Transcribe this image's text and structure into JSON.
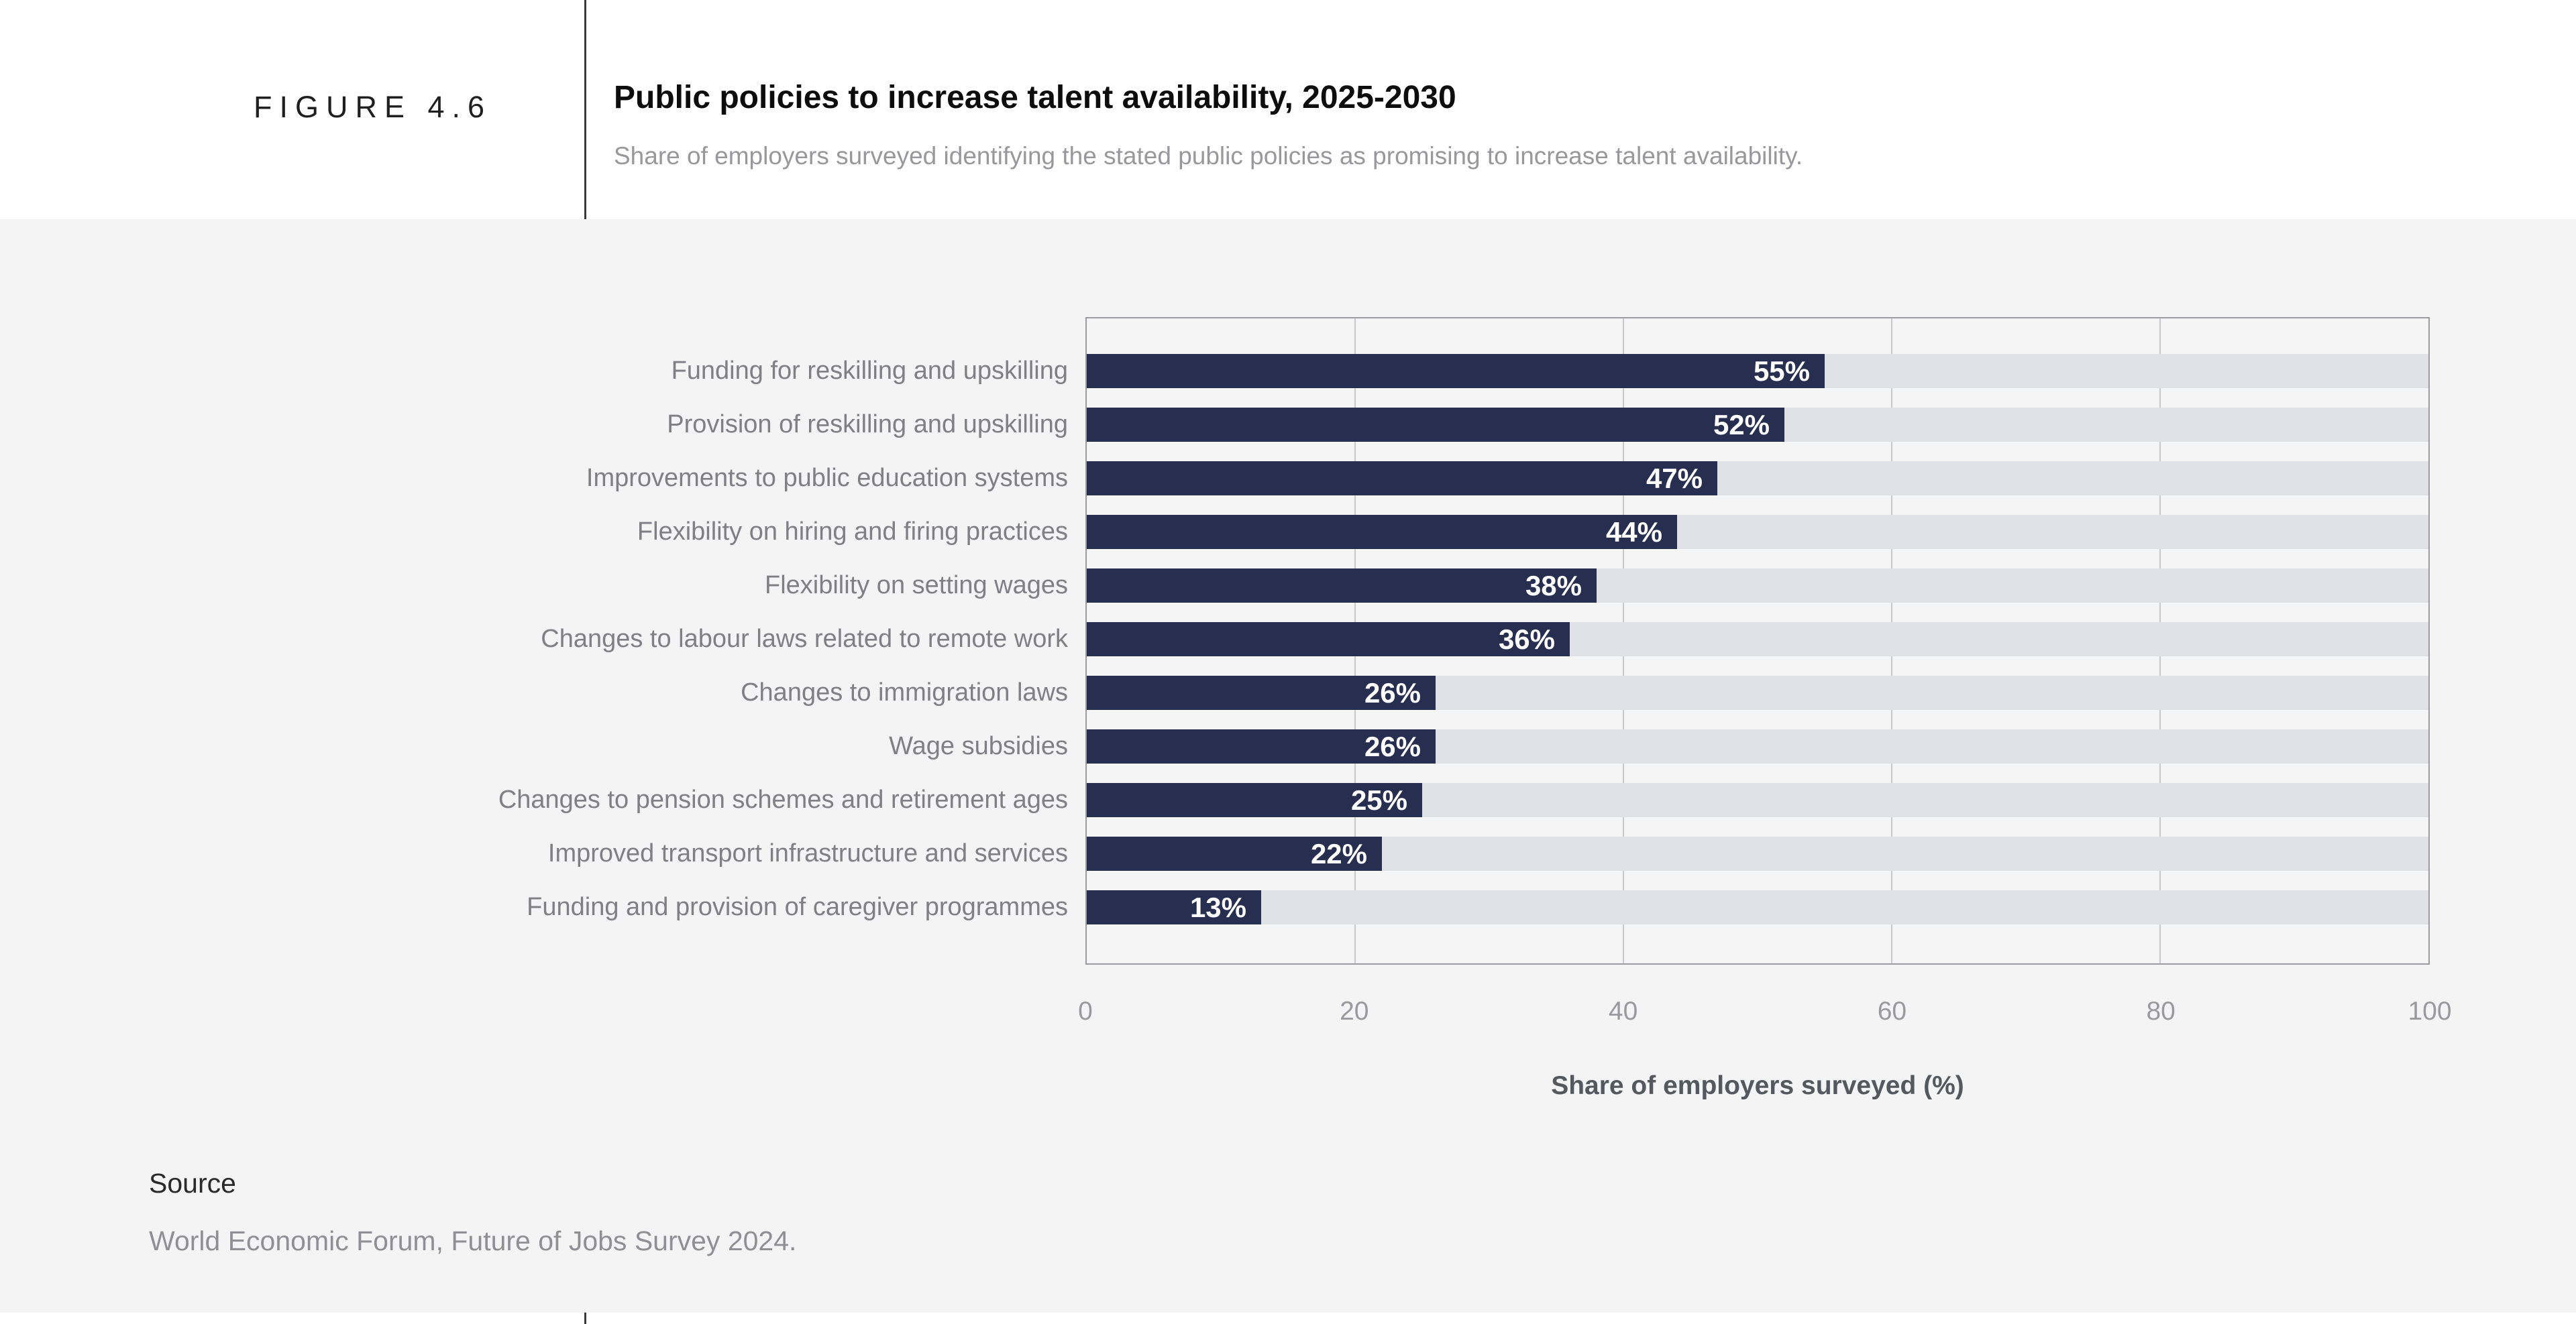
{
  "header": {
    "figure_label": "FIGURE 4.6",
    "title": "Public policies to increase talent availability, 2025-2030",
    "subtitle": "Share of employers surveyed identifying the stated public policies as promising to increase talent availability."
  },
  "chart_data": {
    "type": "bar",
    "orientation": "horizontal",
    "categories": [
      "Funding for reskilling and upskilling",
      "Provision of reskilling and upskilling",
      "Improvements to public education systems",
      "Flexibility on hiring and firing practices",
      "Flexibility on setting wages",
      "Changes to labour laws related to remote work",
      "Changes to immigration laws",
      "Wage subsidies",
      "Changes to pension schemes and retirement ages",
      "Improved transport infrastructure and services",
      "Funding and provision of caregiver programmes"
    ],
    "values": [
      55,
      52,
      47,
      44,
      38,
      36,
      26,
      26,
      25,
      22,
      13
    ],
    "value_labels": [
      "55%",
      "52%",
      "47%",
      "44%",
      "38%",
      "36%",
      "26%",
      "26%",
      "25%",
      "22%",
      "13%"
    ],
    "title": "Public policies to increase talent availability, 2025-2030",
    "xlabel": "Share of employers surveyed (%)",
    "ylabel": "",
    "xlim": [
      0,
      100
    ],
    "ticks": [
      0,
      20,
      40,
      60,
      80,
      100
    ],
    "grid": "vertical",
    "legend": "none"
  },
  "source": {
    "label": "Source",
    "text": "World Economic Forum, Future of Jobs Survey 2024."
  },
  "colors": {
    "bar": "#272e4f",
    "track": "#e0e1e6",
    "plot-bg": "#f5f5f6",
    "page-bg": "#f4f4f5",
    "plot-border": "#9b9ba0",
    "grid": "#c9c9cd",
    "divider": "#3a3a3a"
  }
}
